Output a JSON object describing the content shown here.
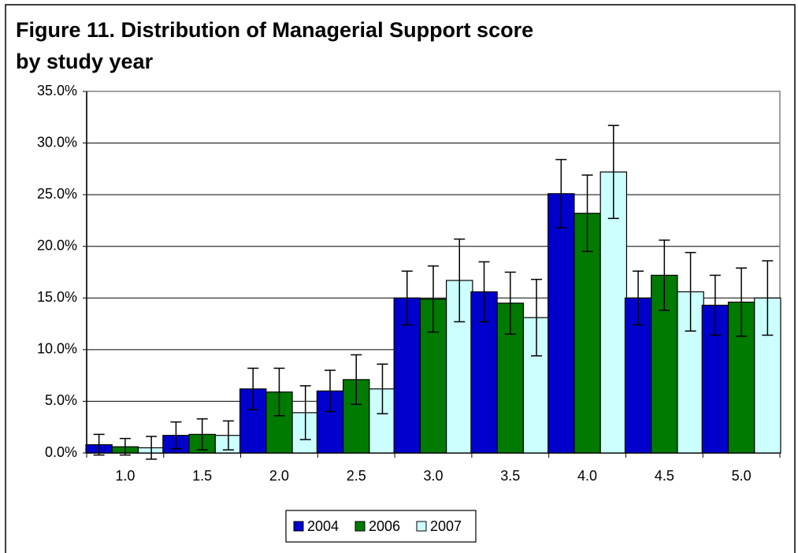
{
  "chart_data": {
    "type": "bar",
    "title": "Figure 11. Distribution of Managerial Support score by study year",
    "categories": [
      "1.0",
      "1.5",
      "2.0",
      "2.5",
      "3.0",
      "3.5",
      "4.0",
      "4.5",
      "5.0"
    ],
    "series": [
      {
        "name": "2004",
        "color": "#0000cc",
        "values": [
          0.8,
          1.7,
          6.2,
          6.0,
          15.0,
          15.6,
          25.1,
          15.0,
          14.3
        ],
        "errors": [
          1.0,
          1.3,
          2.0,
          2.0,
          2.6,
          2.9,
          3.3,
          2.6,
          2.9
        ]
      },
      {
        "name": "2006",
        "color": "#007a00",
        "values": [
          0.6,
          1.8,
          5.9,
          7.1,
          14.9,
          14.5,
          23.2,
          17.2,
          14.6
        ],
        "errors": [
          0.8,
          1.5,
          2.3,
          2.4,
          3.2,
          3.0,
          3.7,
          3.4,
          3.3
        ]
      },
      {
        "name": "2007",
        "color": "#ccffff",
        "values": [
          0.5,
          1.7,
          3.9,
          6.2,
          16.7,
          13.1,
          27.2,
          15.6,
          15.0
        ],
        "errors": [
          1.1,
          1.4,
          2.6,
          2.4,
          4.0,
          3.7,
          4.5,
          3.8,
          3.6
        ]
      }
    ],
    "ylim": [
      0,
      35
    ],
    "yticks": [
      {
        "value": 0,
        "label": "0.0%"
      },
      {
        "value": 5,
        "label": "5.0%"
      },
      {
        "value": 10,
        "label": "10.0%"
      },
      {
        "value": 15,
        "label": "15.0%"
      },
      {
        "value": 20,
        "label": "20.0%"
      },
      {
        "value": 25,
        "label": "25.0%"
      },
      {
        "value": 30,
        "label": "30.0%"
      },
      {
        "value": 35,
        "label": "35.0%"
      }
    ],
    "grid": true
  }
}
